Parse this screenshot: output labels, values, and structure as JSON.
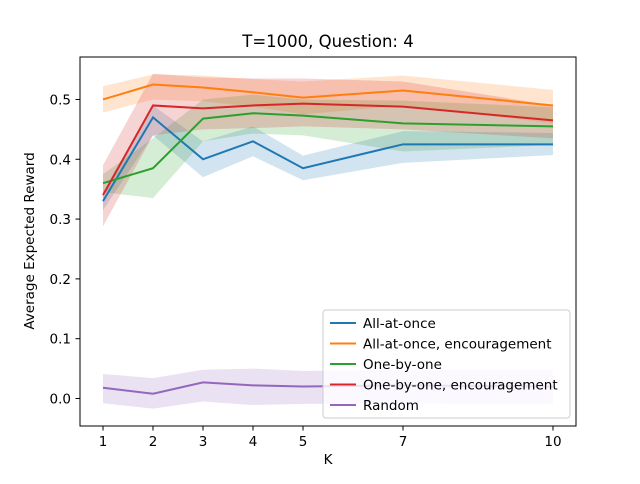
{
  "figure": {
    "background": "#ffffff"
  },
  "chart_data": {
    "type": "line",
    "title": "T=1000, Question: 4",
    "xlabel": "K",
    "ylabel": "Average Expected Reward",
    "x": [
      1,
      2,
      3,
      4,
      5,
      7,
      10
    ],
    "x_tick_labels": [
      "1",
      "2",
      "3",
      "4",
      "5",
      "7",
      "10"
    ],
    "y_tick_values": [
      0.0,
      0.1,
      0.2,
      0.3,
      0.4,
      0.5
    ],
    "y_tick_labels": [
      "0.0",
      "0.1",
      "0.2",
      "0.3",
      "0.4",
      "0.5"
    ],
    "xlim": [
      0.54,
      10.46
    ],
    "ylim": [
      -0.046,
      0.571
    ],
    "grid": false,
    "band_alpha": 0.2,
    "legend": {
      "position": "lower right",
      "entries": [
        "All-at-once",
        "All-at-once, encouragement",
        "One-by-one",
        "One-by-one, encouragement",
        "Random"
      ]
    },
    "series": [
      {
        "name": "All-at-once",
        "color": "#1f77b4",
        "values": [
          0.33,
          0.47,
          0.4,
          0.43,
          0.385,
          0.425,
          0.425
        ],
        "band_lower": [
          0.315,
          0.44,
          0.37,
          0.405,
          0.365,
          0.394,
          0.407
        ],
        "band_upper": [
          0.345,
          0.49,
          0.43,
          0.455,
          0.406,
          0.447,
          0.444
        ]
      },
      {
        "name": "All-at-once, encouragement",
        "color": "#ff7f0e",
        "values": [
          0.5,
          0.525,
          0.52,
          0.512,
          0.503,
          0.515,
          0.49
        ],
        "band_lower": [
          0.478,
          0.5,
          0.497,
          0.488,
          0.475,
          0.49,
          0.46
        ],
        "band_upper": [
          0.522,
          0.542,
          0.54,
          0.534,
          0.53,
          0.54,
          0.516
        ]
      },
      {
        "name": "One-by-one",
        "color": "#2ca02c",
        "values": [
          0.36,
          0.385,
          0.468,
          0.477,
          0.473,
          0.46,
          0.455
        ],
        "band_lower": [
          0.345,
          0.335,
          0.43,
          0.443,
          0.44,
          0.413,
          0.424
        ],
        "band_upper": [
          0.375,
          0.435,
          0.5,
          0.508,
          0.5,
          0.498,
          0.487
        ]
      },
      {
        "name": "One-by-one, encouragement",
        "color": "#d62728",
        "values": [
          0.34,
          0.49,
          0.485,
          0.49,
          0.493,
          0.488,
          0.465
        ],
        "band_lower": [
          0.288,
          0.44,
          0.45,
          0.452,
          0.455,
          0.45,
          0.435
        ],
        "band_upper": [
          0.39,
          0.543,
          0.537,
          0.535,
          0.535,
          0.53,
          0.49
        ]
      },
      {
        "name": "Random",
        "color": "#9467bd",
        "values": [
          0.018,
          0.008,
          0.027,
          0.022,
          0.02,
          0.022,
          0.02
        ],
        "band_lower": [
          -0.008,
          -0.017,
          -0.005,
          -0.011,
          -0.009,
          -0.008,
          -0.01
        ],
        "band_upper": [
          0.041,
          0.034,
          0.048,
          0.05,
          0.046,
          0.048,
          0.048
        ]
      }
    ]
  }
}
